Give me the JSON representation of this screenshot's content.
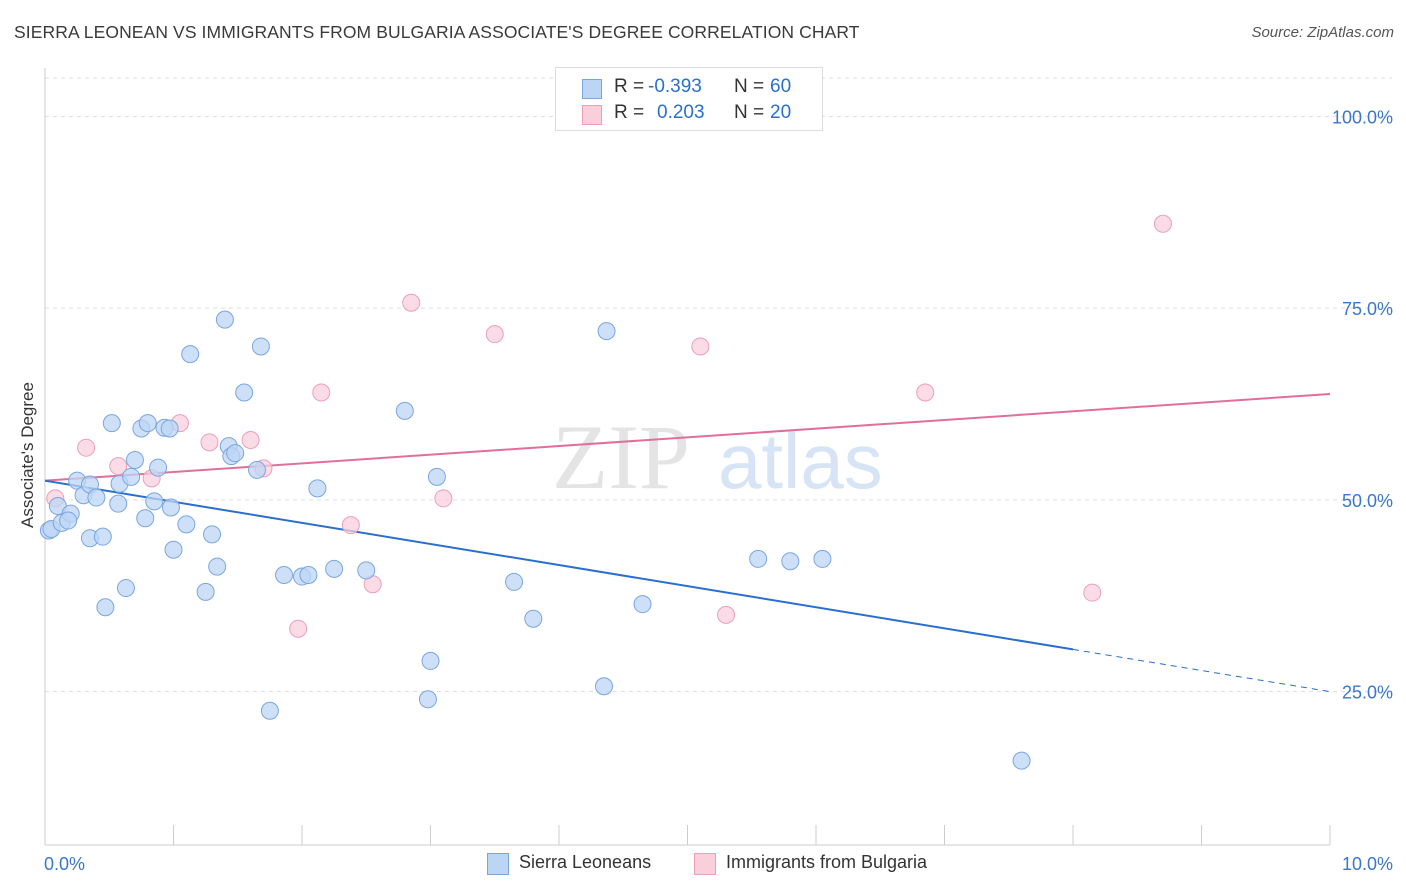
{
  "title": "SIERRA LEONEAN VS IMMIGRANTS FROM BULGARIA ASSOCIATE'S DEGREE CORRELATION CHART",
  "source": "Source: ZipAtlas.com",
  "watermark": {
    "zip": "ZIP",
    "atlas": "atlas"
  },
  "stats": [
    {
      "r_label": "R = ",
      "r_value": "-0.393",
      "n_label": "N = ",
      "n_value": "60"
    },
    {
      "r_label": "R = ",
      "r_value": "0.203",
      "n_label": "N = ",
      "n_value": "20"
    }
  ],
  "legend": {
    "series1": "Sierra Leoneans",
    "series2": "Immigrants from Bulgaria"
  },
  "colors": {
    "blue_fill": "#bcd5f5",
    "blue_stroke": "#7aa6e0",
    "blue_line": "#2a6fcd",
    "pink_fill": "#f9cfdc",
    "pink_stroke": "#eba0b8",
    "pink_line": "#e0709a",
    "axis_text": "#3a76cc",
    "grid": "#dddddd"
  },
  "chart_data": {
    "type": "scatter",
    "title": "SIERRA LEONEAN VS IMMIGRANTS FROM BULGARIA ASSOCIATE'S DEGREE CORRELATION CHART",
    "xlabel": "",
    "ylabel": "Associate's Degree",
    "xlim": [
      0,
      10
    ],
    "ylim": [
      5,
      105
    ],
    "x_tick_labels": [
      "0.0%",
      "10.0%"
    ],
    "y_ticks": [
      25,
      50,
      75,
      100
    ],
    "y_tick_labels": [
      "25.0%",
      "50.0%",
      "75.0%",
      "100.0%"
    ],
    "grid": true,
    "legend_position": "bottom",
    "series": [
      {
        "name": "Sierra Leoneans",
        "r": -0.393,
        "n": 60,
        "trend": {
          "x0": 0.0,
          "y0": 52.5,
          "x1": 8.0,
          "y1": 30.5,
          "x_dashed_end": 10.0,
          "y_dashed_end": 25.0
        },
        "points": [
          [
            0.03,
            46.0
          ],
          [
            0.05,
            46.2
          ],
          [
            0.1,
            49.2
          ],
          [
            0.13,
            47.0
          ],
          [
            0.2,
            48.2
          ],
          [
            0.18,
            47.3
          ],
          [
            0.25,
            52.5
          ],
          [
            0.3,
            50.6
          ],
          [
            0.35,
            52.0
          ],
          [
            0.4,
            50.3
          ],
          [
            0.35,
            45.0
          ],
          [
            0.45,
            45.2
          ],
          [
            0.47,
            36.0
          ],
          [
            0.52,
            60.0
          ],
          [
            0.57,
            49.5
          ],
          [
            0.58,
            52.1
          ],
          [
            0.63,
            38.5
          ],
          [
            0.67,
            53.0
          ],
          [
            0.7,
            55.2
          ],
          [
            0.75,
            59.3
          ],
          [
            0.78,
            47.6
          ],
          [
            0.8,
            60.0
          ],
          [
            0.85,
            49.8
          ],
          [
            0.88,
            54.2
          ],
          [
            0.93,
            59.4
          ],
          [
            0.97,
            59.3
          ],
          [
            0.98,
            49.0
          ],
          [
            1.0,
            43.5
          ],
          [
            1.1,
            46.8
          ],
          [
            1.13,
            69.0
          ],
          [
            1.25,
            38.0
          ],
          [
            1.3,
            45.5
          ],
          [
            1.34,
            41.3
          ],
          [
            1.4,
            73.5
          ],
          [
            1.43,
            57.0
          ],
          [
            1.45,
            55.7
          ],
          [
            1.48,
            56.1
          ],
          [
            1.55,
            64.0
          ],
          [
            1.65,
            53.9
          ],
          [
            1.68,
            70.0
          ],
          [
            1.75,
            22.5
          ],
          [
            1.86,
            40.2
          ],
          [
            2.0,
            40.0
          ],
          [
            2.05,
            40.2
          ],
          [
            2.12,
            51.5
          ],
          [
            2.25,
            41.0
          ],
          [
            2.5,
            40.8
          ],
          [
            2.8,
            61.6
          ],
          [
            2.98,
            24.0
          ],
          [
            3.0,
            29.0
          ],
          [
            3.05,
            53.0
          ],
          [
            3.65,
            39.3
          ],
          [
            3.8,
            34.5
          ],
          [
            4.35,
            25.7
          ],
          [
            4.37,
            72.0
          ],
          [
            4.65,
            36.4
          ],
          [
            5.55,
            42.3
          ],
          [
            5.8,
            42.0
          ],
          [
            6.05,
            42.3
          ],
          [
            7.6,
            16.0
          ]
        ]
      },
      {
        "name": "Immigrants from Bulgaria",
        "r": 0.203,
        "n": 20,
        "trend": {
          "x0": 0.0,
          "y0": 52.5,
          "x1": 10.0,
          "y1": 63.8
        },
        "points": [
          [
            0.08,
            50.2
          ],
          [
            0.32,
            56.8
          ],
          [
            0.57,
            54.4
          ],
          [
            0.83,
            52.8
          ],
          [
            1.05,
            60.0
          ],
          [
            1.28,
            57.5
          ],
          [
            1.6,
            57.8
          ],
          [
            1.7,
            54.1
          ],
          [
            2.15,
            64.0
          ],
          [
            2.38,
            46.7
          ],
          [
            2.55,
            39.0
          ],
          [
            2.85,
            75.7
          ],
          [
            3.1,
            50.2
          ],
          [
            3.5,
            71.6
          ],
          [
            5.1,
            70.0
          ],
          [
            5.3,
            35.0
          ],
          [
            6.85,
            64.0
          ],
          [
            8.15,
            37.9
          ],
          [
            8.7,
            86.0
          ],
          [
            1.97,
            33.2
          ]
        ]
      }
    ]
  }
}
